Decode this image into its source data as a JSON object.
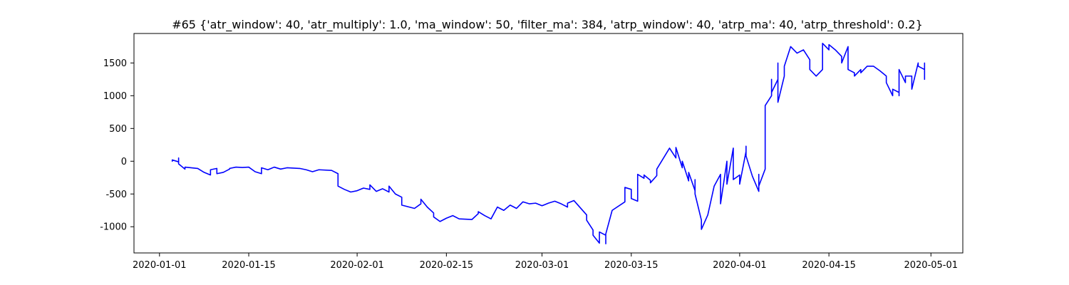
{
  "chart_data": {
    "type": "line",
    "title": "#65 {'atr_window': 40, 'atr_multiply': 1.0, 'ma_window': 50, 'filter_ma': 384, 'atrp_window': 40, 'atrp_ma': 40, 'atrp_threshold': 0.2}",
    "xlabel": "",
    "ylabel": "",
    "grid": false,
    "legend": "none",
    "x_axis_kind": "date",
    "x_ticks": [
      "2020-01-01",
      "2020-01-15",
      "2020-02-01",
      "2020-02-15",
      "2020-03-01",
      "2020-03-15",
      "2020-04-01",
      "2020-04-15",
      "2020-05-01"
    ],
    "y_ticks": [
      -1000,
      -500,
      0,
      500,
      1000,
      1500
    ],
    "xlim": [
      "2019-12-28",
      "2020-05-06"
    ],
    "ylim": [
      -1400,
      1950
    ],
    "series": [
      {
        "color": "#0000ff",
        "points": [
          [
            "2020-01-03",
            0
          ],
          [
            "2020-01-03",
            20
          ],
          [
            "2020-01-04",
            -10
          ],
          [
            "2020-01-04",
            50
          ],
          [
            "2020-01-04",
            -40
          ],
          [
            "2020-01-05",
            -120
          ],
          [
            "2020-01-05",
            -90
          ],
          [
            "2020-01-07",
            -110
          ],
          [
            "2020-01-08",
            -170
          ],
          [
            "2020-01-09",
            -210
          ],
          [
            "2020-01-09",
            -130
          ],
          [
            "2020-01-10",
            -110
          ],
          [
            "2020-01-10",
            -190
          ],
          [
            "2020-01-11",
            -170
          ],
          [
            "2020-01-12",
            -120
          ],
          [
            "2020-01-12",
            -110
          ],
          [
            "2020-01-13",
            -90
          ],
          [
            "2020-01-14",
            -95
          ],
          [
            "2020-01-15",
            -90
          ],
          [
            "2020-01-16",
            -160
          ],
          [
            "2020-01-17",
            -190
          ],
          [
            "2020-01-17",
            -100
          ],
          [
            "2020-01-18",
            -130
          ],
          [
            "2020-01-19",
            -90
          ],
          [
            "2020-01-20",
            -120
          ],
          [
            "2020-01-21",
            -100
          ],
          [
            "2020-01-23",
            -110
          ],
          [
            "2020-01-24",
            -130
          ],
          [
            "2020-01-25",
            -160
          ],
          [
            "2020-01-26",
            -130
          ],
          [
            "2020-01-28",
            -140
          ],
          [
            "2020-01-29",
            -190
          ],
          [
            "2020-01-29",
            -380
          ],
          [
            "2020-01-30",
            -430
          ],
          [
            "2020-01-31",
            -470
          ],
          [
            "2020-02-01",
            -450
          ],
          [
            "2020-02-02",
            -410
          ],
          [
            "2020-02-03",
            -430
          ],
          [
            "2020-02-03",
            -360
          ],
          [
            "2020-02-04",
            -460
          ],
          [
            "2020-02-05",
            -420
          ],
          [
            "2020-02-06",
            -470
          ],
          [
            "2020-02-06",
            -380
          ],
          [
            "2020-02-07",
            -500
          ],
          [
            "2020-02-08",
            -550
          ],
          [
            "2020-02-08",
            -670
          ],
          [
            "2020-02-10",
            -720
          ],
          [
            "2020-02-11",
            -650
          ],
          [
            "2020-02-11",
            -580
          ],
          [
            "2020-02-12",
            -700
          ],
          [
            "2020-02-13",
            -790
          ],
          [
            "2020-02-13",
            -850
          ],
          [
            "2020-02-14",
            -920
          ],
          [
            "2020-02-15",
            -870
          ],
          [
            "2020-02-16",
            -830
          ],
          [
            "2020-02-17",
            -880
          ],
          [
            "2020-02-19",
            -890
          ],
          [
            "2020-02-20",
            -800
          ],
          [
            "2020-02-20",
            -770
          ],
          [
            "2020-02-21",
            -830
          ],
          [
            "2020-02-22",
            -880
          ],
          [
            "2020-02-23",
            -700
          ],
          [
            "2020-02-24",
            -750
          ],
          [
            "2020-02-25",
            -670
          ],
          [
            "2020-02-26",
            -720
          ],
          [
            "2020-02-27",
            -620
          ],
          [
            "2020-02-28",
            -650
          ],
          [
            "2020-02-29",
            -640
          ],
          [
            "2020-03-01",
            -680
          ],
          [
            "2020-03-02",
            -640
          ],
          [
            "2020-03-03",
            -610
          ],
          [
            "2020-03-04",
            -650
          ],
          [
            "2020-03-05",
            -700
          ],
          [
            "2020-03-05",
            -640
          ],
          [
            "2020-03-06",
            -600
          ],
          [
            "2020-03-08",
            -820
          ],
          [
            "2020-03-08",
            -900
          ],
          [
            "2020-03-09",
            -1050
          ],
          [
            "2020-03-09",
            -1130
          ],
          [
            "2020-03-10",
            -1250
          ],
          [
            "2020-03-10",
            -1080
          ],
          [
            "2020-03-11",
            -1130
          ],
          [
            "2020-03-11",
            -1260
          ],
          [
            "2020-03-11",
            -1110
          ],
          [
            "2020-03-12",
            -750
          ],
          [
            "2020-03-14",
            -620
          ],
          [
            "2020-03-14",
            -520
          ],
          [
            "2020-03-14",
            -400
          ],
          [
            "2020-03-15",
            -430
          ],
          [
            "2020-03-15",
            -570
          ],
          [
            "2020-03-16",
            -610
          ],
          [
            "2020-03-16",
            -200
          ],
          [
            "2020-03-17",
            -260
          ],
          [
            "2020-03-17",
            -210
          ],
          [
            "2020-03-18",
            -290
          ],
          [
            "2020-03-18",
            -330
          ],
          [
            "2020-03-19",
            -220
          ],
          [
            "2020-03-19",
            -120
          ],
          [
            "2020-03-21",
            200
          ],
          [
            "2020-03-22",
            50
          ],
          [
            "2020-03-22",
            210
          ],
          [
            "2020-03-23",
            -100
          ],
          [
            "2020-03-23",
            0
          ],
          [
            "2020-03-24",
            -300
          ],
          [
            "2020-03-24",
            -170
          ],
          [
            "2020-03-25",
            -450
          ],
          [
            "2020-03-25",
            -280
          ],
          [
            "2020-03-25",
            -500
          ],
          [
            "2020-03-26",
            -900
          ],
          [
            "2020-03-26",
            -1040
          ],
          [
            "2020-03-27",
            -820
          ],
          [
            "2020-03-28",
            -380
          ],
          [
            "2020-03-29",
            -200
          ],
          [
            "2020-03-29",
            -650
          ],
          [
            "2020-03-30",
            0
          ],
          [
            "2020-03-30",
            -350
          ],
          [
            "2020-03-31",
            200
          ],
          [
            "2020-03-31",
            -280
          ],
          [
            "2020-04-01",
            -210
          ],
          [
            "2020-04-01",
            -350
          ],
          [
            "2020-04-02",
            150
          ],
          [
            "2020-04-02",
            230
          ],
          [
            "2020-04-02",
            80
          ],
          [
            "2020-04-03",
            -230
          ],
          [
            "2020-04-04",
            -460
          ],
          [
            "2020-04-04",
            -200
          ],
          [
            "2020-04-04",
            -380
          ],
          [
            "2020-04-05",
            -120
          ],
          [
            "2020-04-05",
            500
          ],
          [
            "2020-04-05",
            850
          ],
          [
            "2020-04-06",
            1000
          ],
          [
            "2020-04-06",
            1250
          ],
          [
            "2020-04-06",
            1050
          ],
          [
            "2020-04-07",
            1250
          ],
          [
            "2020-04-07",
            1500
          ],
          [
            "2020-04-07",
            900
          ],
          [
            "2020-04-08",
            1300
          ],
          [
            "2020-04-08",
            1450
          ],
          [
            "2020-04-09",
            1750
          ],
          [
            "2020-04-10",
            1650
          ],
          [
            "2020-04-11",
            1700
          ],
          [
            "2020-04-12",
            1550
          ],
          [
            "2020-04-12",
            1400
          ],
          [
            "2020-04-13",
            1300
          ],
          [
            "2020-04-14",
            1400
          ],
          [
            "2020-04-14",
            1800
          ],
          [
            "2020-04-15",
            1700
          ],
          [
            "2020-04-15",
            1780
          ],
          [
            "2020-04-16",
            1700
          ],
          [
            "2020-04-17",
            1600
          ],
          [
            "2020-04-17",
            1500
          ],
          [
            "2020-04-18",
            1750
          ],
          [
            "2020-04-18",
            1400
          ],
          [
            "2020-04-19",
            1350
          ],
          [
            "2020-04-19",
            1300
          ],
          [
            "2020-04-20",
            1400
          ],
          [
            "2020-04-20",
            1350
          ],
          [
            "2020-04-21",
            1450
          ],
          [
            "2020-04-22",
            1450
          ],
          [
            "2020-04-23",
            1380
          ],
          [
            "2020-04-24",
            1300
          ],
          [
            "2020-04-24",
            1200
          ],
          [
            "2020-04-25",
            1000
          ],
          [
            "2020-04-25",
            1100
          ],
          [
            "2020-04-26",
            1050
          ],
          [
            "2020-04-26",
            1000
          ],
          [
            "2020-04-26",
            1400
          ],
          [
            "2020-04-27",
            1200
          ],
          [
            "2020-04-27",
            1300
          ],
          [
            "2020-04-28",
            1300
          ],
          [
            "2020-04-28",
            1100
          ],
          [
            "2020-04-29",
            1500
          ],
          [
            "2020-04-29",
            1450
          ],
          [
            "2020-04-30",
            1400
          ],
          [
            "2020-04-30",
            1500
          ],
          [
            "2020-04-30",
            1300
          ],
          [
            "2020-04-30",
            1250
          ]
        ]
      }
    ]
  }
}
